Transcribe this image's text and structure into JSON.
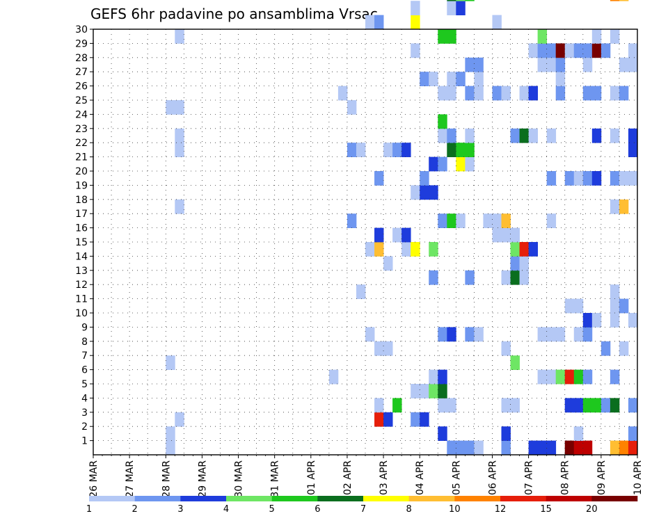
{
  "chart_data": {
    "type": "heatmap",
    "title": "GEFS 6hr padavine po ansamblima Vrsac",
    "xlabel": "",
    "ylabel": "",
    "y_tick_labels": [
      "1",
      "2",
      "3",
      "4",
      "5",
      "6",
      "7",
      "8",
      "9",
      "10",
      "11",
      "12",
      "13",
      "14",
      "15",
      "16",
      "17",
      "18",
      "19",
      "20",
      "21",
      "22",
      "23",
      "24",
      "25",
      "26",
      "27",
      "28",
      "29",
      "30"
    ],
    "y_range": [
      0,
      30
    ],
    "x_tick_labels": [
      "26 MAR",
      "27 MAR",
      "28 MAR",
      "29 MAR",
      "30 MAR",
      "31 MAR",
      "01 APR",
      "02 APR",
      "03 APR",
      "04 APR",
      "05 APR",
      "06 APR",
      "07 APR",
      "08 APR",
      "09 APR",
      "10 APR"
    ],
    "x_steps_per_day": 4,
    "x_total_steps": 60,
    "grid": true,
    "colorbar": {
      "position": "bottom",
      "labels": [
        "1",
        "2",
        "3",
        "4",
        "5",
        "6",
        "7",
        "8",
        "10",
        "12",
        "15",
        "20"
      ],
      "colors": [
        "#b4c8f5",
        "#6e96f0",
        "#1e3cdc",
        "#6ee664",
        "#1ec81e",
        "#0a6e1e",
        "#ffff00",
        "#ffbe32",
        "#ff8200",
        "#e61e0a",
        "#be0000",
        "#780000"
      ]
    },
    "cells": [
      [
        8,
        0,
        1
      ],
      [
        39,
        0,
        2
      ],
      [
        40,
        0,
        2
      ],
      [
        41,
        0,
        2
      ],
      [
        42,
        0,
        1
      ],
      [
        45,
        0,
        2
      ],
      [
        48,
        0,
        3
      ],
      [
        49,
        0,
        3
      ],
      [
        50,
        0,
        3
      ],
      [
        52,
        0,
        12
      ],
      [
        53,
        0,
        11
      ],
      [
        54,
        0,
        11
      ],
      [
        57,
        0,
        8
      ],
      [
        58,
        0,
        9
      ],
      [
        59,
        0,
        10
      ],
      [
        60,
        0,
        11
      ],
      [
        61,
        0,
        1
      ],
      [
        8,
        1,
        1
      ],
      [
        38,
        1,
        3
      ],
      [
        45,
        1,
        3
      ],
      [
        53,
        1,
        1
      ],
      [
        59,
        1,
        2
      ],
      [
        9,
        2,
        1
      ],
      [
        31,
        2,
        10
      ],
      [
        32,
        2,
        3
      ],
      [
        35,
        2,
        2
      ],
      [
        36,
        2,
        3
      ],
      [
        31,
        3,
        1
      ],
      [
        33,
        3,
        5
      ],
      [
        38,
        3,
        1
      ],
      [
        39,
        3,
        1
      ],
      [
        45,
        3,
        1
      ],
      [
        46,
        3,
        1
      ],
      [
        52,
        3,
        3
      ],
      [
        53,
        3,
        3
      ],
      [
        54,
        3,
        5
      ],
      [
        55,
        3,
        5
      ],
      [
        56,
        3,
        2
      ],
      [
        57,
        3,
        6
      ],
      [
        59,
        3,
        2
      ],
      [
        60,
        3,
        2
      ],
      [
        61,
        3,
        1
      ],
      [
        35,
        4,
        1
      ],
      [
        36,
        4,
        1
      ],
      [
        37,
        4,
        4
      ],
      [
        38,
        4,
        6
      ],
      [
        26,
        5,
        1
      ],
      [
        37,
        5,
        1
      ],
      [
        38,
        5,
        3
      ],
      [
        49,
        5,
        1
      ],
      [
        50,
        5,
        1
      ],
      [
        51,
        5,
        4
      ],
      [
        52,
        5,
        10
      ],
      [
        53,
        5,
        5
      ],
      [
        54,
        5,
        2
      ],
      [
        57,
        5,
        2
      ],
      [
        8,
        6,
        1
      ],
      [
        46,
        6,
        4
      ],
      [
        31,
        7,
        1
      ],
      [
        32,
        7,
        1
      ],
      [
        45,
        7,
        1
      ],
      [
        56,
        7,
        2
      ],
      [
        58,
        7,
        1
      ],
      [
        30,
        8,
        1
      ],
      [
        38,
        8,
        2
      ],
      [
        39,
        8,
        3
      ],
      [
        41,
        8,
        2
      ],
      [
        42,
        8,
        1
      ],
      [
        49,
        8,
        1
      ],
      [
        50,
        8,
        1
      ],
      [
        51,
        8,
        1
      ],
      [
        53,
        8,
        1
      ],
      [
        54,
        8,
        2
      ],
      [
        54,
        9,
        3
      ],
      [
        55,
        9,
        1
      ],
      [
        57,
        9,
        1
      ],
      [
        59,
        9,
        1
      ],
      [
        52,
        10,
        1
      ],
      [
        53,
        10,
        1
      ],
      [
        57,
        10,
        1
      ],
      [
        58,
        10,
        2
      ],
      [
        29,
        11,
        1
      ],
      [
        57,
        11,
        1
      ],
      [
        37,
        12,
        2
      ],
      [
        41,
        12,
        2
      ],
      [
        45,
        12,
        1
      ],
      [
        46,
        12,
        6
      ],
      [
        47,
        12,
        1
      ],
      [
        32,
        13,
        1
      ],
      [
        46,
        13,
        2
      ],
      [
        47,
        13,
        1
      ],
      [
        30,
        14,
        1
      ],
      [
        31,
        14,
        8
      ],
      [
        34,
        14,
        1
      ],
      [
        35,
        14,
        7
      ],
      [
        37,
        14,
        4
      ],
      [
        46,
        14,
        4
      ],
      [
        47,
        14,
        10
      ],
      [
        48,
        14,
        3
      ],
      [
        31,
        15,
        3
      ],
      [
        33,
        15,
        1
      ],
      [
        34,
        15,
        3
      ],
      [
        44,
        15,
        1
      ],
      [
        45,
        15,
        1
      ],
      [
        46,
        15,
        1
      ],
      [
        28,
        16,
        2
      ],
      [
        38,
        16,
        2
      ],
      [
        39,
        16,
        5
      ],
      [
        40,
        16,
        1
      ],
      [
        43,
        16,
        1
      ],
      [
        44,
        16,
        1
      ],
      [
        45,
        16,
        8
      ],
      [
        50,
        16,
        1
      ],
      [
        9,
        17,
        1
      ],
      [
        57,
        17,
        1
      ],
      [
        58,
        17,
        8
      ],
      [
        35,
        18,
        1
      ],
      [
        36,
        18,
        3
      ],
      [
        37,
        18,
        3
      ],
      [
        31,
        19,
        2
      ],
      [
        36,
        19,
        2
      ],
      [
        50,
        19,
        2
      ],
      [
        52,
        19,
        2
      ],
      [
        53,
        19,
        1
      ],
      [
        54,
        19,
        2
      ],
      [
        55,
        19,
        3
      ],
      [
        57,
        19,
        2
      ],
      [
        58,
        19,
        1
      ],
      [
        59,
        19,
        1
      ],
      [
        60,
        19,
        2
      ],
      [
        37,
        20,
        3
      ],
      [
        38,
        20,
        2
      ],
      [
        40,
        20,
        7
      ],
      [
        41,
        20,
        1
      ],
      [
        9,
        21,
        1
      ],
      [
        28,
        21,
        2
      ],
      [
        29,
        21,
        1
      ],
      [
        32,
        21,
        1
      ],
      [
        33,
        21,
        2
      ],
      [
        34,
        21,
        3
      ],
      [
        39,
        21,
        6
      ],
      [
        40,
        21,
        5
      ],
      [
        41,
        21,
        5
      ],
      [
        59,
        21,
        3
      ],
      [
        60,
        21,
        5
      ],
      [
        9,
        22,
        1
      ],
      [
        38,
        22,
        1
      ],
      [
        39,
        22,
        2
      ],
      [
        41,
        22,
        1
      ],
      [
        46,
        22,
        2
      ],
      [
        47,
        22,
        6
      ],
      [
        48,
        22,
        1
      ],
      [
        50,
        22,
        1
      ],
      [
        55,
        22,
        3
      ],
      [
        57,
        22,
        1
      ],
      [
        59,
        22,
        3
      ],
      [
        60,
        22,
        4
      ],
      [
        38,
        23,
        5
      ],
      [
        8,
        24,
        1
      ],
      [
        9,
        24,
        1
      ],
      [
        28,
        24,
        1
      ],
      [
        27,
        25,
        1
      ],
      [
        38,
        25,
        1
      ],
      [
        39,
        25,
        1
      ],
      [
        41,
        25,
        2
      ],
      [
        42,
        25,
        1
      ],
      [
        44,
        25,
        2
      ],
      [
        45,
        25,
        1
      ],
      [
        47,
        25,
        1
      ],
      [
        48,
        25,
        3
      ],
      [
        51,
        25,
        2
      ],
      [
        54,
        25,
        2
      ],
      [
        55,
        25,
        2
      ],
      [
        57,
        25,
        1
      ],
      [
        58,
        25,
        2
      ],
      [
        36,
        26,
        2
      ],
      [
        37,
        26,
        1
      ],
      [
        39,
        26,
        1
      ],
      [
        40,
        26,
        2
      ],
      [
        42,
        26,
        1
      ],
      [
        51,
        26,
        1
      ],
      [
        41,
        27,
        2
      ],
      [
        42,
        27,
        2
      ],
      [
        49,
        27,
        1
      ],
      [
        50,
        27,
        1
      ],
      [
        51,
        27,
        2
      ],
      [
        54,
        27,
        1
      ],
      [
        58,
        27,
        1
      ],
      [
        59,
        27,
        1
      ],
      [
        60,
        27,
        4
      ],
      [
        35,
        28,
        1
      ],
      [
        48,
        28,
        1
      ],
      [
        49,
        28,
        2
      ],
      [
        50,
        28,
        2
      ],
      [
        51,
        28,
        12
      ],
      [
        52,
        28,
        1
      ],
      [
        53,
        28,
        2
      ],
      [
        54,
        28,
        2
      ],
      [
        55,
        28,
        12
      ],
      [
        56,
        28,
        2
      ],
      [
        59,
        28,
        1
      ],
      [
        9,
        29,
        1
      ],
      [
        38,
        29,
        5
      ],
      [
        39,
        29,
        5
      ],
      [
        49,
        29,
        4
      ],
      [
        55,
        29,
        1
      ],
      [
        57,
        29,
        1
      ],
      [
        30,
        30,
        1
      ],
      [
        31,
        30,
        2
      ],
      [
        35,
        30,
        7
      ],
      [
        44,
        30,
        1
      ],
      [
        35,
        31,
        1
      ],
      [
        39,
        31,
        1
      ],
      [
        40,
        31,
        3
      ],
      [
        39,
        32,
        6
      ],
      [
        40,
        32,
        4
      ],
      [
        41,
        32,
        5
      ],
      [
        57,
        32,
        9
      ],
      [
        58,
        32,
        8
      ]
    ]
  }
}
